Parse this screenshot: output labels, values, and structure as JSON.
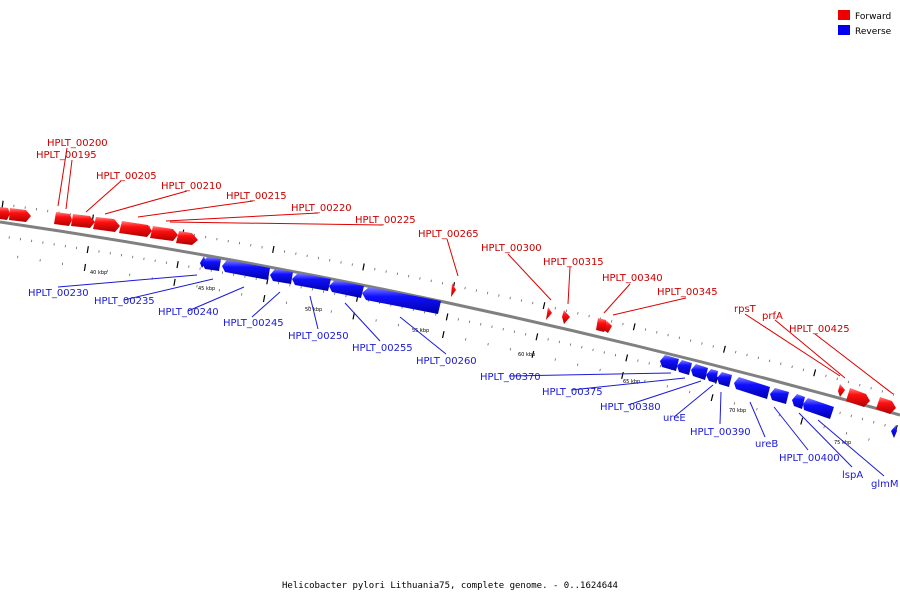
{
  "legend": [
    {
      "label": "Forward",
      "color": "#ee0000"
    },
    {
      "label": "Reverse",
      "color": "#0000ee"
    }
  ],
  "caption": "Helicobacter pylori Lithuania75, complete genome. - 0..1624644",
  "colors": {
    "forward": "#ee0000",
    "reverse": "#0000ee",
    "leader_forward": "#dd0000",
    "leader_reverse": "#0000cc",
    "backbone": "#808080"
  },
  "scale_labels": [
    "40 kbp",
    "45 kbp",
    "50 kbp",
    "55 kbp",
    "60 kbp",
    "65 kbp",
    "70 kbp",
    "75 kbp"
  ],
  "forward_genes": [
    {
      "label": "HPLT_00200"
    },
    {
      "label": "HPLT_00195"
    },
    {
      "label": "HPLT_00205"
    },
    {
      "label": "HPLT_00210"
    },
    {
      "label": "HPLT_00215"
    },
    {
      "label": "HPLT_00220"
    },
    {
      "label": "HPLT_00225"
    },
    {
      "label": "HPLT_00265"
    },
    {
      "label": "HPLT_00300"
    },
    {
      "label": "HPLT_00315"
    },
    {
      "label": "HPLT_00340"
    },
    {
      "label": "HPLT_00345"
    },
    {
      "label": "rpsT"
    },
    {
      "label": "prfA"
    },
    {
      "label": "HPLT_00425"
    }
  ],
  "reverse_genes": [
    {
      "label": "HPLT_00230"
    },
    {
      "label": "HPLT_00235"
    },
    {
      "label": "HPLT_00240"
    },
    {
      "label": "HPLT_00245"
    },
    {
      "label": "HPLT_00250"
    },
    {
      "label": "HPLT_00255"
    },
    {
      "label": "HPLT_00260"
    },
    {
      "label": "HPLT_00370"
    },
    {
      "label": "HPLT_00375"
    },
    {
      "label": "HPLT_00380"
    },
    {
      "label": "ureE"
    },
    {
      "label": "HPLT_00390"
    },
    {
      "label": "ureB"
    },
    {
      "label": "HPLT_00400"
    },
    {
      "label": "lspA"
    },
    {
      "label": "glmM"
    }
  ]
}
